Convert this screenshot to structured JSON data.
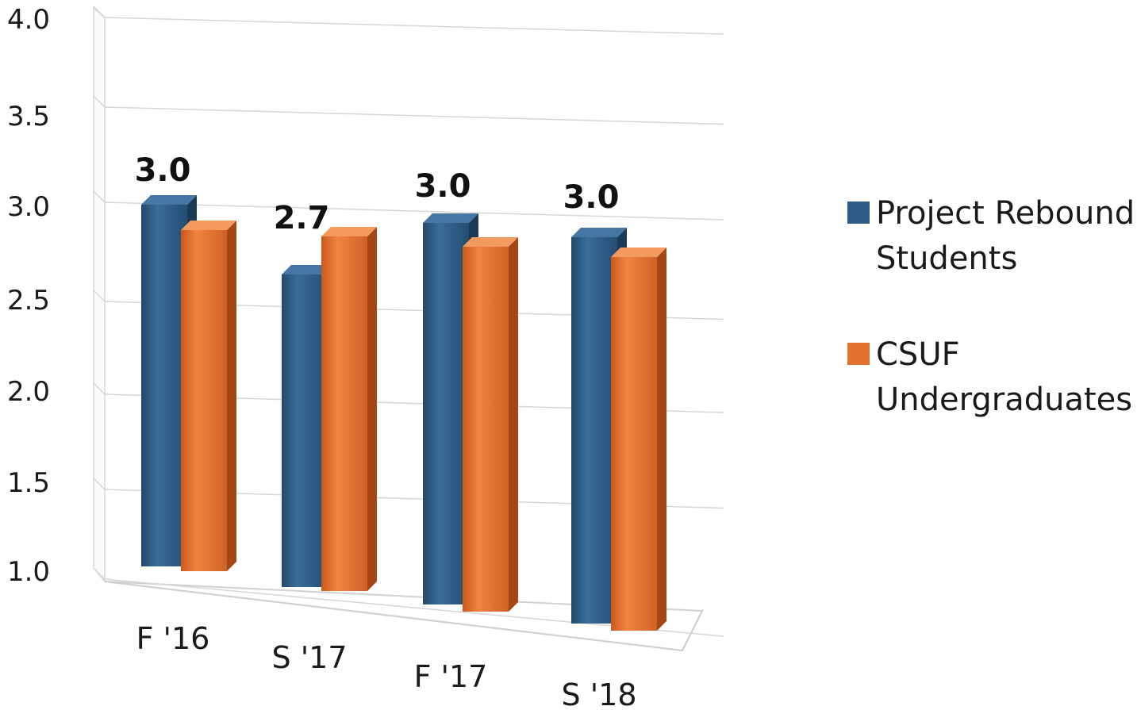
{
  "chart_data": {
    "type": "bar",
    "style": "3d-clustered-column",
    "categories": [
      "F '16",
      "S '17",
      "F '17",
      "S '18"
    ],
    "series": [
      {
        "name": "Project Rebound Students",
        "color": "#2e5d86",
        "values": [
          3.0,
          2.7,
          3.0,
          3.0
        ]
      },
      {
        "name": "CSUF Undergraduates",
        "color": "#e1712d",
        "values": [
          2.9,
          3.0,
          2.95,
          2.95
        ]
      }
    ],
    "data_labels": [
      "3.0",
      "2.7",
      "3.0",
      "3.0"
    ],
    "y_ticks": [
      "1.0",
      "1.5",
      "2.0",
      "2.5",
      "3.0",
      "3.5",
      "4.0"
    ],
    "ylim": [
      1.0,
      4.0
    ],
    "grid": true,
    "legend_position": "right",
    "legend": {
      "items": [
        {
          "lines": [
            "Project Rebound",
            "Students"
          ],
          "color": "#2e5d86"
        },
        {
          "lines": [
            "CSUF",
            "Undergraduates"
          ],
          "color": "#e1712d"
        }
      ]
    }
  }
}
